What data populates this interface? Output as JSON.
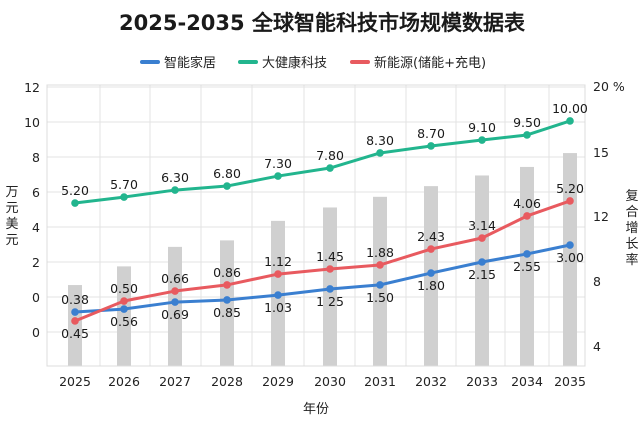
{
  "chart_data": {
    "type": "line",
    "title": "2025-2035 全球智能科技市场规模数据表",
    "xlabel": "年份",
    "ylabel": "万元美元",
    "y2label": "复合增长率",
    "categories": [
      "2025",
      "2026",
      "2027",
      "2028",
      "2029",
      "2030",
      "2031",
      "2032",
      "2033",
      "2034",
      "2035"
    ],
    "y_ticks": [
      {
        "label": "12",
        "value": 12
      },
      {
        "label": "10",
        "value": 10
      },
      {
        "label": "8",
        "value": 8
      },
      {
        "label": "6",
        "value": 6
      },
      {
        "label": "4",
        "value": 4
      },
      {
        "label": "2",
        "value": 2
      },
      {
        "label": "0",
        "value": 0
      },
      {
        "label": "0",
        "value": -2
      }
    ],
    "ylim": [
      -3.9,
      12
    ],
    "y2_ticks": [
      {
        "label": "20 %",
        "value": 20
      },
      {
        "label": "15",
        "value": 15
      },
      {
        "label": "12",
        "value": 12
      },
      {
        "label": "8",
        "value": 8
      },
      {
        "label": "4",
        "value": 4
      }
    ],
    "y2lim": [
      2.4,
      20
    ],
    "grid": true,
    "legend_position": "top-center",
    "series": [
      {
        "name": "智能家居",
        "color": "#3a7fd0",
        "values": [
          0.38,
          0.56,
          0.69,
          0.85,
          1.03,
          1.25,
          1.5,
          1.8,
          2.15,
          2.55,
          3.0
        ],
        "labels": [
          "0.38",
          "0.56",
          "0.69",
          "0.85",
          "1.03",
          "1 25",
          "1.50",
          "1.80",
          "2.15",
          "2.55",
          "3.00"
        ],
        "plot_y": [
          -0.86,
          -0.69,
          -0.29,
          -0.17,
          0.11,
          0.46,
          0.69,
          1.37,
          2.0,
          2.46,
          2.97
        ],
        "label_pos": [
          "above",
          "below",
          "below",
          "below",
          "below",
          "below",
          "below",
          "below",
          "below",
          "below",
          "below"
        ]
      },
      {
        "name": "大健康科技",
        "color": "#22b58e",
        "values": [
          5.2,
          5.7,
          6.3,
          6.8,
          7.3,
          7.8,
          8.3,
          8.7,
          9.1,
          9.5,
          10.0
        ],
        "labels": [
          "5.20",
          "5.70",
          "6.30",
          "6.80",
          "7.30",
          "7.80",
          "8.30",
          "8.70",
          "9.10",
          "9.50",
          "10.00"
        ],
        "plot_y": [
          5.37,
          5.71,
          6.11,
          6.34,
          6.91,
          7.37,
          8.23,
          8.63,
          8.97,
          9.26,
          10.06
        ],
        "label_pos": [
          "above",
          "above",
          "above",
          "above",
          "above",
          "above",
          "above",
          "above",
          "above",
          "above",
          "above"
        ]
      },
      {
        "name": "新能源(储能+充电)",
        "color": "#e85a5f",
        "values": [
          0.45,
          0.5,
          0.66,
          0.86,
          1.12,
          1.45,
          1.88,
          2.43,
          3.14,
          4.06,
          5.2
        ],
        "labels": [
          "0.45",
          "0.50",
          "0.66",
          "0.86",
          "1.12",
          "1.45",
          "1.88",
          "2.43",
          "3.14",
          "4.06",
          "5.20"
        ],
        "plot_y": [
          -1.37,
          -0.23,
          0.34,
          0.69,
          1.31,
          1.6,
          1.83,
          2.74,
          3.37,
          4.63,
          5.49
        ],
        "label_pos": [
          "below",
          "above",
          "above",
          "above",
          "above",
          "above",
          "above",
          "above",
          "above",
          "above",
          "above"
        ]
      }
    ],
    "bars": {
      "name": "复合增长率",
      "axis": "right",
      "color": "#d0d0d0",
      "values": [
        7.75,
        8.9,
        10.1,
        10.5,
        11.7,
        12.4,
        12.9,
        13.4,
        13.9,
        14.3,
        14.95
      ]
    }
  }
}
